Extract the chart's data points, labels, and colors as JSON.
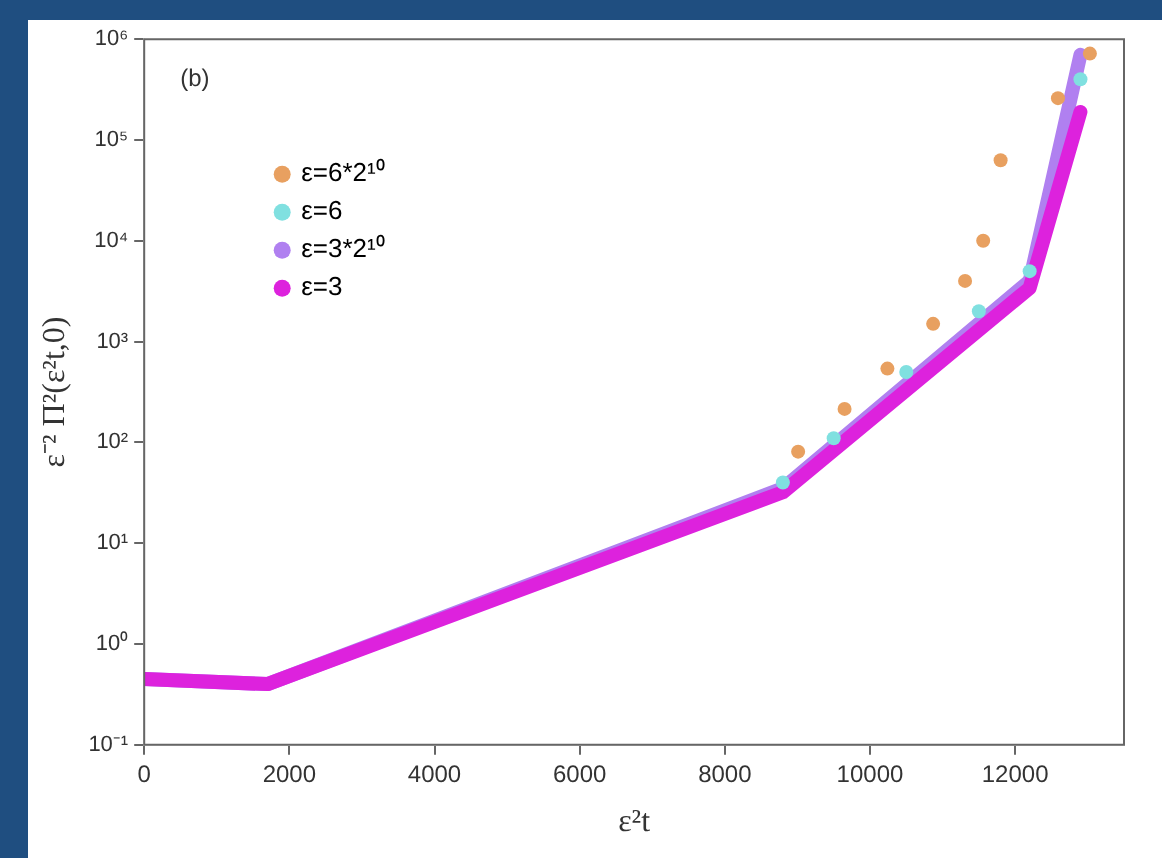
{
  "chart_data": {
    "type": "scatter",
    "xlabel": "ε²t",
    "ylabel": "ε⁻² Π²(ε²t,0)",
    "annotations": [
      "(b)"
    ],
    "xlim": [
      0,
      13500
    ],
    "xticks": [
      0,
      2000,
      4000,
      6000,
      8000,
      10000,
      12000
    ],
    "ylim": [
      0.1,
      1000000
    ],
    "yticks": [
      {
        "value": 0.1,
        "label": "10⁻¹"
      },
      {
        "value": 1,
        "label": "10⁰"
      },
      {
        "value": 10,
        "label": "10¹"
      },
      {
        "value": 100,
        "label": "10²"
      },
      {
        "value": 1000,
        "label": "10³"
      },
      {
        "value": 10000,
        "label": "10⁴"
      },
      {
        "value": 100000,
        "label": "10⁵"
      },
      {
        "value": 1000000,
        "label": "10⁶"
      }
    ],
    "log": "y",
    "grid": false,
    "legend": "top left",
    "series": [
      {
        "name": "ε=6*2¹⁰",
        "color": "#e8a060",
        "marker": "circle",
        "x": [
          9010,
          9650,
          10240,
          10870,
          11310,
          11560,
          11800,
          12590,
          13030
        ],
        "values": [
          81,
          215,
          540,
          1500,
          4000,
          10000,
          63000,
          260000,
          720000
        ]
      },
      {
        "name": "ε=6",
        "color": "#80e0e0",
        "marker": "circle",
        "x": [
          8800,
          9500,
          10500,
          11500,
          12200,
          12900
        ],
        "values": [
          40,
          110,
          500,
          2000,
          5000,
          400000
        ]
      },
      {
        "name": "ε=3*2¹⁰",
        "color": "#b080f0",
        "type": "line",
        "marker": "none",
        "x": [
          0,
          1700,
          8800,
          12200,
          12900
        ],
        "values": [
          0.45,
          0.4,
          35,
          4000,
          700000
        ]
      },
      {
        "name": "ε=3",
        "color": "#dd22dd",
        "type": "line",
        "marker": "none",
        "x": [
          0,
          1700,
          8800,
          12200,
          12900
        ],
        "values": [
          0.45,
          0.4,
          32,
          3400,
          190000
        ]
      }
    ]
  }
}
